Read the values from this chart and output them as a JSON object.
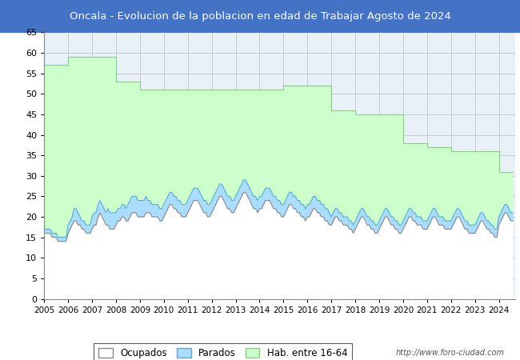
{
  "title": "Oncala - Evolucion de la poblacion en edad de Trabajar Agosto de 2024",
  "title_bg": "#4472C4",
  "title_color": "white",
  "plot_bg": "#e8f0f8",
  "ylim": [
    0,
    65
  ],
  "yticks": [
    0,
    5,
    10,
    15,
    20,
    25,
    30,
    35,
    40,
    45,
    50,
    55,
    60,
    65
  ],
  "hab_color": "#ccffcc",
  "hab_edge": "#88cc88",
  "parados_color": "#aaddff",
  "parados_edge": "#55aadd",
  "ocupados_color": "#ffffff",
  "ocupados_edge": "#888888",
  "url_text": "http://www.foro-ciudad.com",
  "legend_labels": [
    "Ocupados",
    "Parados",
    "Hab. entre 16-64"
  ],
  "hab_data": [
    57,
    57,
    57,
    57,
    57,
    57,
    57,
    57,
    57,
    57,
    57,
    57,
    59,
    59,
    59,
    59,
    59,
    59,
    59,
    59,
    59,
    59,
    59,
    59,
    59,
    59,
    59,
    59,
    59,
    59,
    59,
    59,
    59,
    59,
    59,
    59,
    53,
    53,
    53,
    53,
    53,
    53,
    53,
    53,
    53,
    53,
    53,
    53,
    51,
    51,
    51,
    51,
    51,
    51,
    51,
    51,
    51,
    51,
    51,
    51,
    51,
    51,
    51,
    51,
    51,
    51,
    51,
    51,
    51,
    51,
    51,
    51,
    51,
    51,
    51,
    51,
    51,
    51,
    51,
    51,
    51,
    51,
    51,
    51,
    51,
    51,
    51,
    51,
    51,
    51,
    51,
    51,
    51,
    51,
    51,
    51,
    51,
    51,
    51,
    51,
    51,
    51,
    51,
    51,
    51,
    51,
    51,
    51,
    51,
    51,
    51,
    51,
    51,
    51,
    51,
    51,
    51,
    51,
    51,
    51,
    52,
    52,
    52,
    52,
    52,
    52,
    52,
    52,
    52,
    52,
    52,
    52,
    52,
    52,
    52,
    52,
    52,
    52,
    52,
    52,
    52,
    52,
    52,
    52,
    46,
    46,
    46,
    46,
    46,
    46,
    46,
    46,
    46,
    46,
    46,
    46,
    45,
    45,
    45,
    45,
    45,
    45,
    45,
    45,
    45,
    45,
    45,
    45,
    45,
    45,
    45,
    45,
    45,
    45,
    45,
    45,
    45,
    45,
    45,
    45,
    38,
    38,
    38,
    38,
    38,
    38,
    38,
    38,
    38,
    38,
    38,
    38,
    37,
    37,
    37,
    37,
    37,
    37,
    37,
    37,
    37,
    37,
    37,
    37,
    36,
    36,
    36,
    36,
    36,
    36,
    36,
    36,
    36,
    36,
    36,
    36,
    36,
    36,
    36,
    36,
    36,
    36,
    36,
    36,
    36,
    36,
    36,
    36,
    31,
    31,
    31,
    31,
    31,
    31,
    31,
    31
  ],
  "parados_data": [
    1,
    1,
    1,
    1,
    1,
    1,
    1,
    1,
    1,
    1,
    1,
    1,
    2,
    2,
    2,
    3,
    3,
    3,
    2,
    2,
    2,
    2,
    2,
    2,
    3,
    3,
    3,
    3,
    3,
    3,
    3,
    3,
    4,
    4,
    4,
    4,
    3,
    3,
    3,
    3,
    3,
    3,
    4,
    4,
    4,
    4,
    4,
    4,
    4,
    4,
    4,
    4,
    3,
    3,
    3,
    3,
    3,
    3,
    3,
    3,
    3,
    3,
    3,
    3,
    3,
    3,
    3,
    3,
    3,
    3,
    3,
    3,
    3,
    3,
    3,
    3,
    3,
    3,
    3,
    3,
    3,
    3,
    3,
    3,
    3,
    3,
    3,
    3,
    3,
    3,
    3,
    3,
    3,
    3,
    3,
    3,
    3,
    3,
    3,
    3,
    3,
    3,
    3,
    3,
    3,
    3,
    3,
    3,
    3,
    3,
    3,
    3,
    3,
    3,
    3,
    3,
    3,
    3,
    3,
    3,
    3,
    3,
    3,
    3,
    3,
    3,
    3,
    3,
    3,
    3,
    3,
    3,
    3,
    3,
    3,
    3,
    3,
    3,
    3,
    3,
    3,
    3,
    3,
    3,
    2,
    2,
    2,
    2,
    2,
    2,
    2,
    2,
    2,
    2,
    2,
    2,
    2,
    2,
    2,
    2,
    2,
    2,
    2,
    2,
    2,
    2,
    2,
    2,
    2,
    2,
    2,
    2,
    2,
    2,
    2,
    2,
    2,
    2,
    2,
    2,
    2,
    2,
    2,
    2,
    2,
    2,
    2,
    2,
    2,
    2,
    2,
    2,
    2,
    2,
    2,
    2,
    2,
    2,
    2,
    2,
    2,
    2,
    2,
    2,
    2,
    2,
    2,
    2,
    2,
    2,
    2,
    2,
    2,
    2,
    2,
    2,
    2,
    2,
    2,
    2,
    2,
    2,
    2,
    2,
    2,
    2,
    2,
    2,
    2,
    2,
    2,
    2,
    2,
    2,
    2,
    2
  ],
  "ocupados_data": [
    16,
    16,
    16,
    16,
    15,
    15,
    15,
    14,
    14,
    14,
    14,
    14,
    16,
    17,
    18,
    19,
    19,
    18,
    18,
    17,
    17,
    16,
    16,
    16,
    17,
    18,
    18,
    20,
    21,
    20,
    19,
    18,
    18,
    17,
    17,
    17,
    18,
    19,
    19,
    20,
    20,
    19,
    19,
    20,
    21,
    21,
    21,
    20,
    20,
    20,
    20,
    21,
    21,
    21,
    20,
    20,
    20,
    20,
    19,
    19,
    20,
    21,
    22,
    23,
    23,
    22,
    22,
    21,
    21,
    20,
    20,
    20,
    21,
    22,
    23,
    24,
    24,
    24,
    23,
    22,
    21,
    21,
    20,
    20,
    21,
    22,
    23,
    24,
    25,
    25,
    24,
    23,
    22,
    22,
    21,
    21,
    22,
    23,
    24,
    25,
    26,
    26,
    25,
    24,
    23,
    22,
    22,
    21,
    22,
    22,
    23,
    24,
    24,
    24,
    23,
    22,
    22,
    21,
    21,
    20,
    20,
    21,
    22,
    23,
    23,
    22,
    22,
    21,
    21,
    20,
    20,
    19,
    20,
    20,
    21,
    22,
    22,
    21,
    21,
    20,
    20,
    19,
    19,
    18,
    18,
    19,
    20,
    20,
    19,
    19,
    18,
    18,
    18,
    17,
    17,
    16,
    17,
    18,
    19,
    20,
    20,
    19,
    18,
    18,
    17,
    17,
    16,
    16,
    17,
    18,
    19,
    20,
    20,
    19,
    18,
    18,
    17,
    17,
    16,
    16,
    17,
    18,
    19,
    20,
    20,
    19,
    19,
    18,
    18,
    18,
    17,
    17,
    17,
    18,
    19,
    20,
    20,
    19,
    18,
    18,
    18,
    17,
    17,
    17,
    17,
    18,
    19,
    20,
    20,
    19,
    18,
    17,
    17,
    16,
    16,
    16,
    16,
    17,
    18,
    19,
    19,
    18,
    17,
    17,
    16,
    16,
    15,
    15,
    18,
    19,
    20,
    21,
    21,
    20,
    19,
    19
  ]
}
